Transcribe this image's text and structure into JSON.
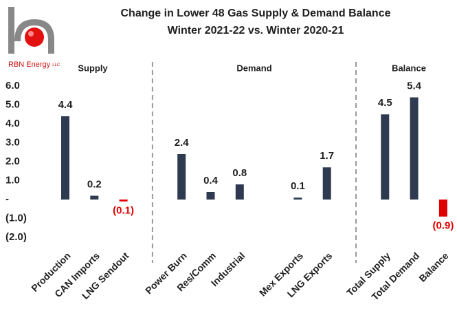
{
  "logo": {
    "name": "RBN Energy",
    "suffix": "LLC"
  },
  "chart_data": {
    "type": "bar",
    "title": "Change in Lower 48 Gas Supply & Demand Balance",
    "subtitle": "Winter 2021-22 vs. Winter 2020-21",
    "groups": [
      "Supply",
      "Demand",
      "Balance"
    ],
    "categories": [
      "Production",
      "CAN Imports",
      "LNG Sendout",
      null,
      "Power Burn",
      "Res/Comm",
      "Industrial",
      null,
      "Mex Exports",
      "LNG Exports",
      null,
      "Total Supply",
      "Total Demand",
      "Balance"
    ],
    "values": [
      4.4,
      0.2,
      -0.1,
      null,
      2.4,
      0.4,
      0.8,
      null,
      0.1,
      1.7,
      null,
      4.5,
      5.4,
      -0.9
    ],
    "value_labels": [
      "4.4",
      "0.2",
      "(0.1)",
      null,
      "2.4",
      "0.4",
      "0.8",
      null,
      "0.1",
      "1.7",
      null,
      "4.5",
      "5.4",
      "(0.9)"
    ],
    "color": "#2d3a4f",
    "negative_color": "#e00000",
    "ylim": [
      -2,
      6
    ],
    "yticks": [
      {
        "value": -2,
        "label": "(2.0)"
      },
      {
        "value": -1,
        "label": "(1.0)"
      },
      {
        "value": 0,
        "label": "-"
      },
      {
        "value": 1,
        "label": "1.0"
      },
      {
        "value": 2,
        "label": "2.0"
      },
      {
        "value": 3,
        "label": "3.0"
      },
      {
        "value": 4,
        "label": "4.0"
      },
      {
        "value": 5,
        "label": "5.0"
      },
      {
        "value": 6,
        "label": "6.0"
      }
    ],
    "grid": false
  }
}
